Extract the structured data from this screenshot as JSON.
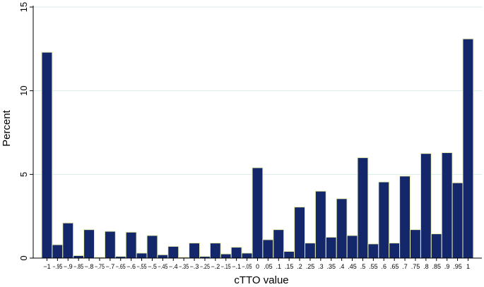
{
  "chart_data": {
    "type": "bar",
    "xlabel": "cTTO value",
    "ylabel": "Percent",
    "ylim": [
      0,
      15
    ],
    "yticks": [
      0,
      5,
      10,
      15
    ],
    "grid": true,
    "bar_fill": "#15276b",
    "bar_edge": "#e7edb0",
    "grid_color": "#d9ecec",
    "categories": [
      "-1",
      "-.95",
      "-.9",
      "-.85",
      "-.8",
      "-.75",
      "-.7",
      "-.65",
      "-.6",
      "-.55",
      "-.5",
      "-.45",
      "-.4",
      "-.35",
      "-.3",
      "-.25",
      "-.2",
      "-.15",
      "-.1",
      "-.05",
      "0",
      ".05",
      ".1",
      ".15",
      ".2",
      ".25",
      ".3",
      ".35",
      ".4",
      ".45",
      ".5",
      ".55",
      ".6",
      ".65",
      ".7",
      ".75",
      ".8",
      ".85",
      ".9",
      ".95",
      "1"
    ],
    "tick_labels": [
      "−1",
      "−.95",
      "−.9",
      "−.85",
      "−.8",
      "−.75",
      "−.7",
      "−.65",
      "−.6",
      "−.55",
      "−.5",
      "−.45",
      "−.4",
      "−.35",
      "−.3",
      "−.25",
      "−.2",
      "−.15",
      "−.1",
      "−.05",
      "0",
      ".05",
      ".1",
      ".15",
      ".2",
      ".25",
      ".3",
      ".35",
      ".4",
      ".45",
      ".5",
      ".55",
      ".6",
      ".65",
      ".7",
      ".75",
      ".8",
      ".85",
      ".9",
      ".95",
      "1"
    ],
    "values": [
      12.3,
      0.8,
      2.1,
      0.15,
      1.7,
      0.05,
      1.6,
      0.1,
      1.55,
      0.3,
      1.35,
      0.2,
      0.7,
      0.05,
      0.9,
      0.1,
      0.9,
      0.25,
      0.65,
      0.3,
      5.4,
      1.1,
      1.7,
      0.4,
      3.05,
      0.9,
      4.0,
      1.25,
      3.55,
      1.35,
      6.0,
      0.85,
      4.55,
      0.9,
      4.9,
      1.7,
      6.25,
      1.45,
      6.3,
      4.5,
      13.1
    ]
  }
}
